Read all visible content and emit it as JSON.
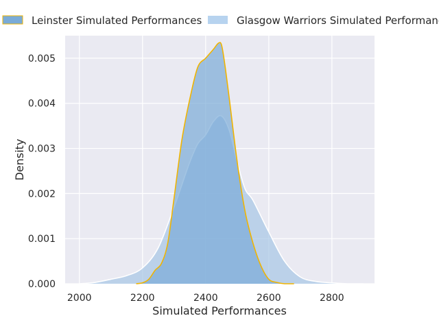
{
  "chart_data": {
    "type": "area",
    "chart_kind": "kde density",
    "title": "",
    "xlabel": "Simulated Performances",
    "ylabel": "Density",
    "xlim": [
      1955,
      2935
    ],
    "ylim": [
      0,
      0.0055
    ],
    "xticks": [
      2000,
      2200,
      2400,
      2600,
      2800
    ],
    "xtick_labels": [
      "2000",
      "2200",
      "2400",
      "2600",
      "2800"
    ],
    "yticks": [
      0,
      0.001,
      0.002,
      0.003,
      0.004,
      0.005
    ],
    "ytick_labels": [
      "0.000",
      "0.001",
      "0.002",
      "0.003",
      "0.004",
      "0.005"
    ],
    "grid": true,
    "legend_position": "top, outside plot",
    "colors": {
      "background": "#eaeaf2",
      "grid": "#ffffff",
      "leinster_fill": "#7aabd7",
      "leinster_edge": "#f0b400",
      "glasgow_fill": "#a7c6e6",
      "glasgow_edge": "#ffffff"
    },
    "series": [
      {
        "name": "Glasgow Warriors Simulated Performances",
        "fill_opacity": 0.7,
        "x": [
          2000,
          2050,
          2100,
          2150,
          2200,
          2250,
          2300,
          2325,
          2350,
          2375,
          2400,
          2425,
          2450,
          2475,
          2500,
          2525,
          2550,
          2600,
          2650,
          2700,
          2750,
          2800,
          2850,
          2900
        ],
        "y": [
          0.0,
          3e-05,
          0.0001,
          0.00018,
          0.00035,
          0.0008,
          0.0017,
          0.0022,
          0.0027,
          0.0031,
          0.0033,
          0.0036,
          0.00372,
          0.0034,
          0.0027,
          0.0021,
          0.00185,
          0.00115,
          0.0005,
          0.00015,
          5e-05,
          2e-05,
          0.0,
          0.0
        ]
      },
      {
        "name": "Leinster Simulated Performances",
        "fill_opacity": 0.7,
        "x": [
          2180,
          2200,
          2220,
          2240,
          2260,
          2280,
          2300,
          2325,
          2350,
          2375,
          2400,
          2425,
          2440,
          2450,
          2460,
          2475,
          2500,
          2525,
          2550,
          2575,
          2600,
          2625,
          2650,
          2680
        ],
        "y": [
          0.0,
          2e-05,
          0.0001,
          0.0003,
          0.00045,
          0.0009,
          0.0019,
          0.0032,
          0.0041,
          0.0048,
          0.005,
          0.0052,
          0.00533,
          0.0053,
          0.0049,
          0.0041,
          0.0027,
          0.0016,
          0.0009,
          0.0004,
          0.0001,
          3e-05,
          0.0,
          0.0
        ]
      }
    ],
    "legend": {
      "items": [
        {
          "label": "Leinster Simulated Performances",
          "swatch": "#7aabd7",
          "edge": "#f0b400"
        },
        {
          "label": "Glasgow Warriors Simulated Performances",
          "swatch": "#b7d3ef",
          "edge": "#b7d3ef"
        }
      ]
    }
  }
}
